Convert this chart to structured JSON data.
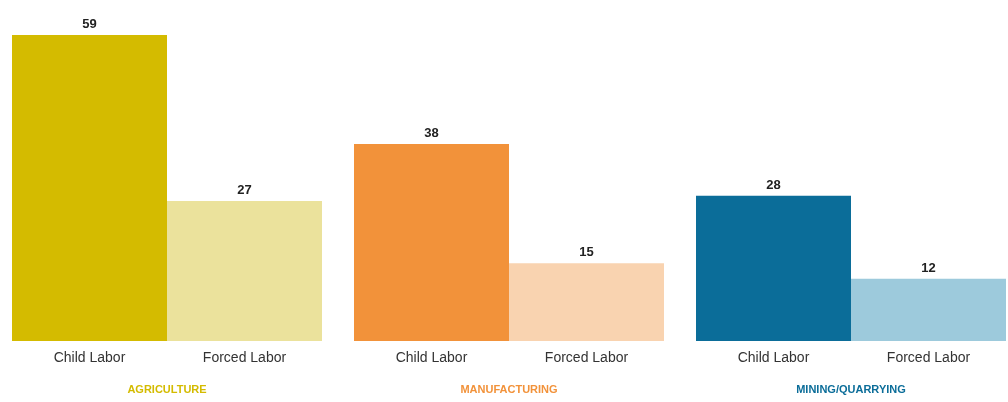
{
  "chart_data": {
    "type": "bar",
    "categories": [
      "Child Labor",
      "Forced Labor",
      "Child Labor",
      "Forced Labor",
      "Child Labor",
      "Forced Labor"
    ],
    "values": [
      59,
      27,
      38,
      15,
      28,
      12
    ],
    "colors": [
      "#d4bb00",
      "#ebe29c",
      "#f2923a",
      "#f9d3b0",
      "#0b6d99",
      "#9dcadc"
    ],
    "data_labels": true,
    "annotations": [
      "AGRICULTURE",
      "MANUFACTURING",
      "MINING/QUARRYING"
    ]
  }
}
